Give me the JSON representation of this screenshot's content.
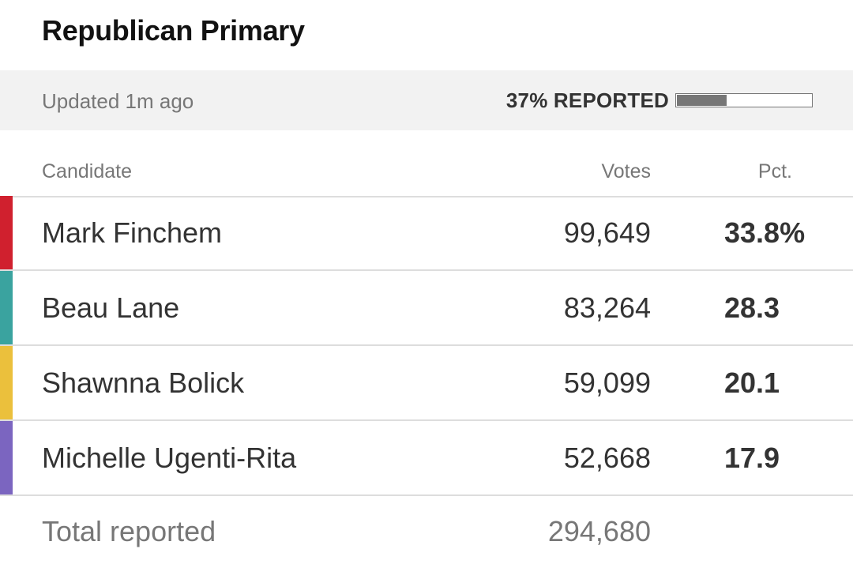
{
  "title": "Republican Primary",
  "status": {
    "updated": "Updated 1m ago",
    "reported_label": "37% REPORTED",
    "reported_fraction": 0.37
  },
  "table": {
    "headers": {
      "candidate": "Candidate",
      "votes": "Votes",
      "pct": "Pct."
    },
    "rows": [
      {
        "name": "Mark Finchem",
        "votes": "99,649",
        "pct": "33.8%",
        "color": "#d0202e"
      },
      {
        "name": "Beau Lane",
        "votes": "83,264",
        "pct": "28.3",
        "color": "#3aa39f"
      },
      {
        "name": "Shawnna Bolick",
        "votes": "59,099",
        "pct": "20.1",
        "color": "#ebc03c"
      },
      {
        "name": "Michelle Ugenti-Rita",
        "votes": "52,668",
        "pct": "17.9",
        "color": "#7b65c0"
      }
    ],
    "total": {
      "label": "Total reported",
      "votes": "294,680"
    }
  }
}
